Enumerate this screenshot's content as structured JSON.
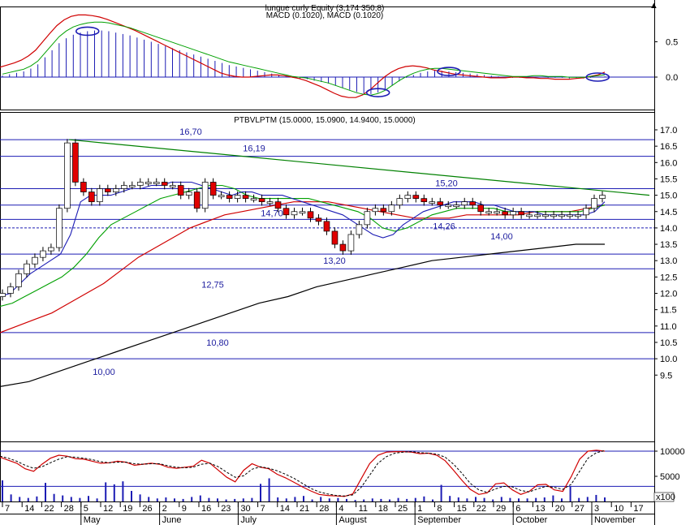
{
  "colors": {
    "background": "#ffffff",
    "frame": "#000000",
    "level_line": "#1c1cb4",
    "price_blue": "#1c1cb4",
    "candle_up": "#ffffff",
    "candle_down": "#e00000",
    "ma_fast": "#1c1cb4",
    "ma_mid": "#00a000",
    "ma_slow": "#d00000",
    "ma_long": "#000000",
    "trend_line": "#008000",
    "macd_bar": "#1c1cb4",
    "macd_signal": "#d00000",
    "macd_line": "#00a000",
    "stoch_k": "#d00000",
    "stoch_d": "#000000",
    "volume_bar": "#1c1cb4",
    "highlight_circle": "#1c1cb4"
  },
  "header": {
    "macd_title_top": "lungue curly Equity (3,174 350,8)",
    "macd_title": "MACD (0.1020), MACD (0.1020)",
    "price_title": "PTBVLPTM (15.0000, 15.0900, 14.9400, 15.0000)"
  },
  "chart_data": [
    {
      "type": "bar",
      "panel": "macd",
      "title": "MACD (0.1020), MACD (0.1020)",
      "y_ticks": [
        "0.5",
        "0.0"
      ],
      "ylim": [
        -0.35,
        1.05
      ],
      "histogram": [
        0.02,
        0.04,
        0.06,
        0.08,
        0.12,
        0.18,
        0.28,
        0.38,
        0.48,
        0.55,
        0.6,
        0.63,
        0.65,
        0.66,
        0.66,
        0.65,
        0.63,
        0.61,
        0.59,
        0.56,
        0.53,
        0.5,
        0.47,
        0.44,
        0.41,
        0.38,
        0.35,
        0.32,
        0.29,
        0.26,
        0.23,
        0.2,
        0.17,
        0.15,
        0.13,
        0.11,
        0.09,
        0.07,
        0.05,
        0.03,
        0.01,
        -0.01,
        -0.02,
        -0.03,
        -0.05,
        -0.07,
        -0.09,
        -0.12,
        -0.15,
        -0.18,
        -0.21,
        -0.23,
        -0.24,
        -0.22,
        -0.18,
        -0.12,
        -0.06,
        -0.01,
        0.03,
        0.06,
        0.08,
        0.09,
        0.09,
        0.08,
        0.07,
        0.06,
        0.05,
        0.04,
        0.03,
        0.02,
        0.01,
        0.0,
        -0.01,
        -0.01,
        -0.01,
        0.0,
        0.0,
        -0.01,
        -0.01,
        -0.01,
        -0.02,
        -0.02,
        -0.02,
        -0.01,
        0.0,
        0.01
      ],
      "signal": [
        0.14,
        0.17,
        0.2,
        0.24,
        0.3,
        0.38,
        0.5,
        0.62,
        0.73,
        0.81,
        0.86,
        0.88,
        0.88,
        0.87,
        0.85,
        0.82,
        0.78,
        0.74,
        0.7,
        0.66,
        0.61,
        0.56,
        0.51,
        0.46,
        0.41,
        0.36,
        0.31,
        0.26,
        0.21,
        0.16,
        0.11,
        0.06,
        0.03,
        0.01,
        0.0,
        0.0,
        0.01,
        0.02,
        0.03,
        0.03,
        0.02,
        0.0,
        -0.02,
        -0.05,
        -0.09,
        -0.13,
        -0.18,
        -0.23,
        -0.27,
        -0.29,
        -0.29,
        -0.25,
        -0.18,
        -0.09,
        0.0,
        0.07,
        0.12,
        0.15,
        0.16,
        0.15,
        0.13,
        0.1,
        0.08,
        0.06,
        0.04,
        0.03,
        0.02,
        0.01,
        0.0,
        -0.01,
        -0.01,
        -0.01,
        0.0,
        0.0,
        -0.01,
        -0.01,
        -0.02,
        -0.02,
        -0.03,
        -0.03,
        -0.03,
        -0.02,
        -0.01,
        0.01,
        0.03,
        0.07
      ],
      "highlights": [
        12,
        53,
        63,
        84
      ]
    },
    {
      "type": "line",
      "panel": "price",
      "title": "PTBVLPTM (15.0000, 15.0900, 14.9400, 15.0000)",
      "ylim": [
        9.15,
        17.2
      ],
      "y_ticks": [
        "17.0",
        "16.5",
        "16.0",
        "15.5",
        "15.0",
        "14.5",
        "14.0",
        "13.5",
        "13.0",
        "12.5",
        "12.0",
        "11.5",
        "11.0",
        "10.5",
        "10.0",
        "9.5"
      ],
      "close": [
        12.0,
        12.2,
        12.6,
        12.9,
        13.1,
        13.3,
        13.4,
        14.6,
        16.6,
        15.4,
        15.1,
        14.8,
        15.2,
        15.1,
        15.2,
        15.3,
        15.3,
        15.4,
        15.4,
        15.4,
        15.3,
        15.3,
        15.0,
        15.1,
        14.6,
        15.4,
        15.0,
        15.0,
        14.9,
        15.0,
        14.9,
        14.9,
        14.8,
        14.8,
        14.6,
        14.4,
        14.5,
        14.5,
        14.3,
        14.2,
        13.9,
        13.5,
        13.3,
        13.8,
        14.1,
        14.5,
        14.6,
        14.5,
        14.7,
        14.9,
        15.0,
        14.9,
        14.8,
        14.8,
        14.7,
        14.7,
        14.7,
        14.8,
        14.7,
        14.5,
        14.5,
        14.5,
        14.4,
        14.5,
        14.4,
        14.4,
        14.4,
        14.4,
        14.4,
        14.4,
        14.4,
        14.4,
        14.6,
        14.9,
        15.0
      ],
      "ma_fast": [
        11.9,
        12.0,
        12.3,
        12.6,
        12.8,
        13.0,
        13.2,
        13.8,
        14.8,
        15.0,
        15.0,
        15.0,
        15.1,
        15.2,
        15.2,
        15.3,
        15.3,
        15.4,
        15.4,
        15.4,
        15.3,
        15.2,
        15.1,
        15.0,
        15.1,
        15.1,
        15.0,
        15.0,
        15.0,
        14.9,
        14.8,
        14.7,
        14.6,
        14.5,
        14.4,
        14.2,
        14.0,
        13.8,
        13.7,
        13.8,
        14.1,
        14.3,
        14.5,
        14.6,
        14.7,
        14.8,
        14.8,
        14.8,
        14.7,
        14.7,
        14.6,
        14.5,
        14.5,
        14.5,
        14.4,
        14.4,
        14.4,
        14.4,
        14.4,
        14.5,
        14.8
      ],
      "ma_mid": [
        11.6,
        11.7,
        11.9,
        12.1,
        12.3,
        12.5,
        12.8,
        13.2,
        13.7,
        14.1,
        14.3,
        14.5,
        14.7,
        14.9,
        15.0,
        15.1,
        15.2,
        15.3,
        15.3,
        15.2,
        15.0,
        14.9,
        14.9,
        14.9,
        14.9,
        14.9,
        14.8,
        14.7,
        14.6,
        14.5,
        14.3,
        14.0,
        13.9,
        14.0,
        14.2,
        14.4,
        14.5,
        14.6,
        14.6,
        14.6,
        14.6,
        14.5,
        14.5,
        14.5,
        14.5,
        14.5,
        14.5,
        14.5,
        14.6,
        14.7
      ],
      "ma_slow": [
        10.8,
        11.0,
        11.2,
        11.4,
        11.7,
        12.0,
        12.3,
        12.7,
        13.1,
        13.4,
        13.7,
        14.0,
        14.2,
        14.4,
        14.5,
        14.6,
        14.7,
        14.8,
        14.8,
        14.8,
        14.7,
        14.6,
        14.5,
        14.4,
        14.3,
        14.3,
        14.3,
        14.4,
        14.4,
        14.4,
        14.4,
        14.5,
        14.5,
        14.5,
        14.6,
        14.7
      ],
      "ma_long": [
        9.15,
        9.3,
        9.6,
        9.9,
        10.2,
        10.5,
        10.8,
        11.1,
        11.4,
        11.7,
        11.9,
        12.2,
        12.4,
        12.6,
        12.8,
        13.0,
        13.1,
        13.2,
        13.3,
        13.4,
        13.5,
        13.5
      ],
      "levels": [
        {
          "value": 16.7,
          "label": "16,70"
        },
        {
          "value": 16.19,
          "label": "16,19"
        },
        {
          "value": 15.2,
          "label": "15,20"
        },
        {
          "value": 14.7,
          "label": "14,70"
        },
        {
          "value": 14.26,
          "label": "14,26"
        },
        {
          "value": 14.0,
          "label": "14,00"
        },
        {
          "value": 13.2,
          "label": "13,20"
        },
        {
          "value": 12.75,
          "label": "12,75"
        },
        {
          "value": 10.8,
          "label": "10,80"
        },
        {
          "value": 10.0,
          "label": "10,00"
        }
      ],
      "trend_line": {
        "from": 16.7,
        "to": 15.0
      }
    },
    {
      "type": "bar",
      "panel": "volume_stochastic",
      "y_ticks": [
        "10000",
        "5000"
      ],
      "y_unit_label": "x100",
      "ylim": [
        0,
        12000
      ],
      "volume": [
        4200,
        1400,
        900,
        700,
        1000,
        3700,
        1500,
        1200,
        900,
        700,
        1100,
        600,
        3800,
        3400,
        4000,
        2100,
        1400,
        900,
        600,
        800,
        600,
        500,
        900,
        1200,
        700,
        600,
        400,
        500,
        600,
        700,
        3500,
        4600,
        800,
        600,
        900,
        1100,
        400,
        900,
        600,
        700,
        500,
        300,
        400,
        600,
        500,
        400,
        700,
        500,
        700,
        1000,
        400,
        3300,
        1100,
        800,
        600,
        900,
        700,
        400,
        900,
        700,
        600,
        600,
        700,
        800,
        1200,
        600,
        3000,
        700,
        900,
        1300,
        800
      ],
      "stoch_k": [
        8800,
        8200,
        7600,
        6500,
        6000,
        7400,
        8600,
        9200,
        9000,
        8500,
        8400,
        8000,
        7600,
        7700,
        8000,
        7800,
        7200,
        7400,
        7600,
        7400,
        6800,
        6600,
        6800,
        7000,
        8200,
        7600,
        6200,
        4800,
        3900,
        6200,
        7500,
        6800,
        6500,
        5400,
        4700,
        3800,
        2900,
        2100,
        1400,
        1200,
        1100,
        1000,
        1500,
        4500,
        7500,
        9200,
        9800,
        9900,
        9900,
        9800,
        9500,
        9600,
        9200,
        8100,
        6200,
        4200,
        2400,
        1400,
        1700,
        3500,
        3700,
        2300,
        1400,
        2000,
        3300,
        3400,
        2300,
        2000,
        4900,
        8400,
        10000,
        10200,
        10000
      ],
      "stoch_d": [
        9000,
        8600,
        8000,
        7200,
        6600,
        6900,
        7700,
        8400,
        8900,
        8800,
        8600,
        8300,
        7900,
        7700,
        7800,
        7800,
        7500,
        7400,
        7500,
        7500,
        7100,
        6800,
        6700,
        6800,
        7400,
        7600,
        6900,
        5800,
        4800,
        5100,
        6400,
        6900,
        6600,
        6100,
        5400,
        4600,
        3600,
        2600,
        1900,
        1500,
        1200,
        1100,
        1300,
        2800,
        5200,
        7600,
        8900,
        9600,
        9800,
        9900,
        9700,
        9600,
        9400,
        8800,
        7400,
        5600,
        3600,
        2300,
        1800,
        2500,
        3000,
        2900,
        2200,
        1900,
        2500,
        3000,
        2800,
        2400,
        3400,
        6000,
        8600,
        9700,
        10100
      ]
    }
  ],
  "x_axis": {
    "day_ticks": [
      "7",
      "14",
      "22",
      "28",
      "5",
      "12",
      "19",
      "26",
      "2",
      "9",
      "16",
      "23",
      "30",
      "7",
      "14",
      "21",
      "28",
      "4",
      "11",
      "18",
      "25",
      "1",
      "8",
      "15",
      "22",
      "29",
      "6",
      "13",
      "20",
      "27",
      "3",
      "10",
      "17"
    ],
    "months": [
      "May",
      "June",
      "July",
      "August",
      "September",
      "October",
      "November"
    ]
  }
}
